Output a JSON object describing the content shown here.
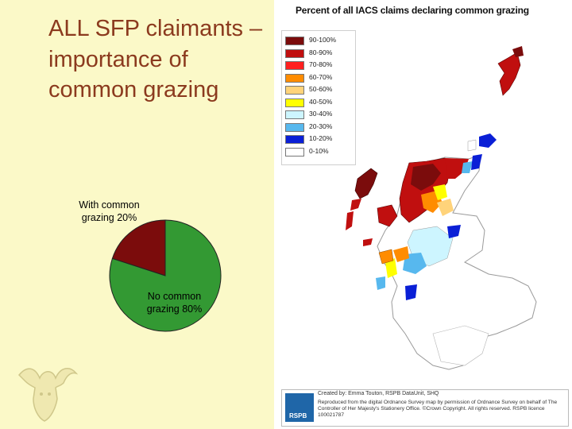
{
  "slide": {
    "title": "ALL SFP claimants – importance of common grazing"
  },
  "pie": {
    "with_label": "With common grazing 20%",
    "no_label": "No common grazing 80%"
  },
  "chart_data": {
    "type": "pie",
    "categories": [
      "With common grazing",
      "No common grazing"
    ],
    "values": [
      20,
      80
    ],
    "colors": [
      "#7b0c0c",
      "#339933"
    ]
  },
  "map": {
    "title": "Percent of all IACS claims declaring common grazing",
    "legend": [
      {
        "label": "90-100%",
        "color": "#7b0c0c"
      },
      {
        "label": "80-90%",
        "color": "#c00f0f"
      },
      {
        "label": "70-80%",
        "color": "#ff2020"
      },
      {
        "label": "60-70%",
        "color": "#ff8c00"
      },
      {
        "label": "50-60%",
        "color": "#ffd37a"
      },
      {
        "label": "40-50%",
        "color": "#ffff00"
      },
      {
        "label": "30-40%",
        "color": "#cdf5ff"
      },
      {
        "label": "20-30%",
        "color": "#57b8ee"
      },
      {
        "label": "10-20%",
        "color": "#0a1fd6"
      },
      {
        "label": "0-10%",
        "color": "#ffffff"
      }
    ],
    "credit_by": "Created by: Emma Touton, RSPB DataUnit, SHQ",
    "credit_repro": "Reproduced from the digital Ordnance Survey map by permission of Ordnance Survey on behalf of The Controller of Her Majesty's Stationery Office. ©Crown Copyright. All rights reserved. RSPB licence 100021787",
    "logo_text": "RSPB"
  }
}
